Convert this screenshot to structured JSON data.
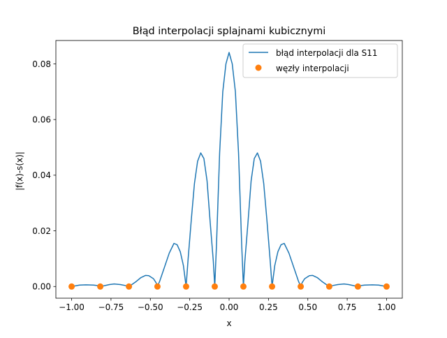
{
  "chart_data": {
    "type": "line",
    "title": "Błąd interpolacji splajnami kubicznymi",
    "xlabel": "x",
    "ylabel": "|f(x)-s(x)|",
    "xlim": [
      -1.1,
      1.1
    ],
    "ylim": [
      -0.0042,
      0.0884
    ],
    "xticks": [
      -1.0,
      -0.75,
      -0.5,
      -0.25,
      0.0,
      0.25,
      0.5,
      0.75,
      1.0
    ],
    "xtick_labels": [
      "−1.00",
      "−0.75",
      "−0.50",
      "−0.25",
      "0.00",
      "0.25",
      "0.50",
      "0.75",
      "1.00"
    ],
    "yticks": [
      0.0,
      0.02,
      0.04,
      0.06,
      0.08
    ],
    "ytick_labels": [
      "0.00",
      "0.02",
      "0.04",
      "0.06",
      "0.08"
    ],
    "grid": false,
    "legend_position": "top-right",
    "series": [
      {
        "name": "błąd interpolacji dla S11",
        "kind": "line",
        "color": "#1f77b4",
        "points": [
          [
            -1.0,
            0.0
          ],
          [
            -0.98,
            0.0002
          ],
          [
            -0.95,
            0.0005
          ],
          [
            -0.91,
            0.0006
          ],
          [
            -0.86,
            0.0005
          ],
          [
            -0.83,
            0.0003
          ],
          [
            -0.818,
            0.0
          ],
          [
            -0.8,
            0.0002
          ],
          [
            -0.76,
            0.0007
          ],
          [
            -0.73,
            0.0009
          ],
          [
            -0.69,
            0.0007
          ],
          [
            -0.655,
            0.0003
          ],
          [
            -0.636,
            0.0
          ],
          [
            -0.62,
            0.0006
          ],
          [
            -0.59,
            0.0018
          ],
          [
            -0.56,
            0.0032
          ],
          [
            -0.53,
            0.004
          ],
          [
            -0.51,
            0.0039
          ],
          [
            -0.48,
            0.0028
          ],
          [
            -0.465,
            0.0015
          ],
          [
            -0.455,
            0.0
          ],
          [
            -0.44,
            0.002
          ],
          [
            -0.41,
            0.007
          ],
          [
            -0.38,
            0.012
          ],
          [
            -0.35,
            0.0155
          ],
          [
            -0.33,
            0.015
          ],
          [
            -0.31,
            0.0125
          ],
          [
            -0.29,
            0.0075
          ],
          [
            -0.273,
            0.0
          ],
          [
            -0.26,
            0.01
          ],
          [
            -0.24,
            0.024
          ],
          [
            -0.22,
            0.037
          ],
          [
            -0.2,
            0.045
          ],
          [
            -0.18,
            0.048
          ],
          [
            -0.16,
            0.046
          ],
          [
            -0.14,
            0.038
          ],
          [
            -0.12,
            0.023
          ],
          [
            -0.1,
            0.009
          ],
          [
            -0.091,
            0.0
          ],
          [
            -0.08,
            0.015
          ],
          [
            -0.06,
            0.048
          ],
          [
            -0.04,
            0.07
          ],
          [
            -0.02,
            0.08
          ],
          [
            0.0,
            0.0841
          ],
          [
            0.02,
            0.08
          ],
          [
            0.04,
            0.07
          ],
          [
            0.06,
            0.048
          ],
          [
            0.08,
            0.015
          ],
          [
            0.091,
            0.0
          ],
          [
            0.1,
            0.009
          ],
          [
            0.12,
            0.023
          ],
          [
            0.14,
            0.038
          ],
          [
            0.16,
            0.046
          ],
          [
            0.18,
            0.048
          ],
          [
            0.2,
            0.045
          ],
          [
            0.22,
            0.037
          ],
          [
            0.24,
            0.024
          ],
          [
            0.26,
            0.01
          ],
          [
            0.273,
            0.0
          ],
          [
            0.29,
            0.0075
          ],
          [
            0.31,
            0.0125
          ],
          [
            0.33,
            0.015
          ],
          [
            0.35,
            0.0155
          ],
          [
            0.38,
            0.012
          ],
          [
            0.41,
            0.007
          ],
          [
            0.44,
            0.002
          ],
          [
            0.455,
            0.0
          ],
          [
            0.465,
            0.0015
          ],
          [
            0.48,
            0.0028
          ],
          [
            0.51,
            0.0039
          ],
          [
            0.53,
            0.004
          ],
          [
            0.56,
            0.0032
          ],
          [
            0.59,
            0.0018
          ],
          [
            0.62,
            0.0006
          ],
          [
            0.636,
            0.0
          ],
          [
            0.655,
            0.0003
          ],
          [
            0.69,
            0.0007
          ],
          [
            0.73,
            0.0009
          ],
          [
            0.76,
            0.0007
          ],
          [
            0.8,
            0.0002
          ],
          [
            0.818,
            0.0
          ],
          [
            0.83,
            0.0003
          ],
          [
            0.86,
            0.0005
          ],
          [
            0.91,
            0.0006
          ],
          [
            0.95,
            0.0005
          ],
          [
            0.98,
            0.0002
          ],
          [
            1.0,
            0.0
          ]
        ]
      },
      {
        "name": "węzły interpolacji",
        "kind": "scatter",
        "color": "#ff7f0e",
        "points": [
          [
            -1.0,
            0.0
          ],
          [
            -0.818,
            0.0
          ],
          [
            -0.636,
            0.0
          ],
          [
            -0.455,
            0.0
          ],
          [
            -0.273,
            0.0
          ],
          [
            -0.091,
            0.0
          ],
          [
            0.091,
            0.0
          ],
          [
            0.273,
            0.0
          ],
          [
            0.455,
            0.0
          ],
          [
            0.636,
            0.0
          ],
          [
            0.818,
            0.0
          ],
          [
            1.0,
            0.0
          ]
        ]
      }
    ]
  }
}
